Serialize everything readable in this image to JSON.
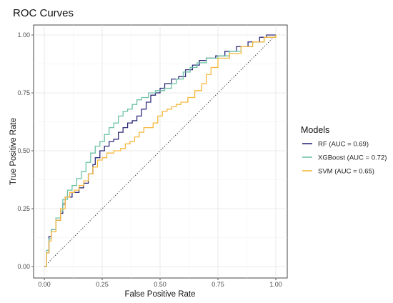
{
  "chart_data": {
    "type": "line",
    "title": "ROC Curves",
    "xlabel": "False Positive Rate",
    "ylabel": "True Positive Rate",
    "xlim": [
      0,
      1
    ],
    "ylim": [
      0,
      1
    ],
    "x_ticks": [
      "0.00",
      "0.25",
      "0.50",
      "0.75",
      "1.00"
    ],
    "y_ticks": [
      "0.00",
      "0.25",
      "0.50",
      "0.75",
      "1.00"
    ],
    "grid": true,
    "reference_line": "diagonal dotted",
    "legend": {
      "title": "Models",
      "position": "right"
    },
    "series": [
      {
        "name": "RF (AUC = 0.69)",
        "color": "#2e2b7a",
        "points": [
          [
            0,
            0
          ],
          [
            0.01,
            0.06
          ],
          [
            0.02,
            0.13
          ],
          [
            0.03,
            0.16
          ],
          [
            0.05,
            0.2
          ],
          [
            0.07,
            0.23
          ],
          [
            0.08,
            0.27
          ],
          [
            0.09,
            0.3
          ],
          [
            0.12,
            0.32
          ],
          [
            0.15,
            0.34
          ],
          [
            0.17,
            0.36
          ],
          [
            0.19,
            0.4
          ],
          [
            0.21,
            0.44
          ],
          [
            0.22,
            0.47
          ],
          [
            0.24,
            0.5
          ],
          [
            0.26,
            0.52
          ],
          [
            0.28,
            0.54
          ],
          [
            0.3,
            0.55
          ],
          [
            0.32,
            0.58
          ],
          [
            0.34,
            0.6
          ],
          [
            0.36,
            0.62
          ],
          [
            0.38,
            0.63
          ],
          [
            0.4,
            0.65
          ],
          [
            0.42,
            0.68
          ],
          [
            0.44,
            0.71
          ],
          [
            0.46,
            0.74
          ],
          [
            0.48,
            0.75
          ],
          [
            0.5,
            0.77
          ],
          [
            0.52,
            0.79
          ],
          [
            0.55,
            0.81
          ],
          [
            0.58,
            0.82
          ],
          [
            0.61,
            0.85
          ],
          [
            0.64,
            0.87
          ],
          [
            0.67,
            0.89
          ],
          [
            0.7,
            0.9
          ],
          [
            0.74,
            0.91
          ],
          [
            0.78,
            0.93
          ],
          [
            0.83,
            0.95
          ],
          [
            0.88,
            0.97
          ],
          [
            0.93,
            0.99
          ],
          [
            0.96,
            1.0
          ],
          [
            1.0,
            1.0
          ]
        ]
      },
      {
        "name": "XGBoost (AUC = 0.72)",
        "color": "#6cc2a6",
        "points": [
          [
            0,
            0
          ],
          [
            0.01,
            0.07
          ],
          [
            0.02,
            0.12
          ],
          [
            0.03,
            0.16
          ],
          [
            0.05,
            0.21
          ],
          [
            0.07,
            0.24
          ],
          [
            0.08,
            0.29
          ],
          [
            0.1,
            0.33
          ],
          [
            0.12,
            0.35
          ],
          [
            0.14,
            0.38
          ],
          [
            0.16,
            0.41
          ],
          [
            0.18,
            0.45
          ],
          [
            0.2,
            0.49
          ],
          [
            0.22,
            0.52
          ],
          [
            0.24,
            0.54
          ],
          [
            0.26,
            0.57
          ],
          [
            0.28,
            0.6
          ],
          [
            0.3,
            0.62
          ],
          [
            0.32,
            0.65
          ],
          [
            0.34,
            0.67
          ],
          [
            0.36,
            0.68
          ],
          [
            0.38,
            0.7
          ],
          [
            0.4,
            0.72
          ],
          [
            0.42,
            0.73
          ],
          [
            0.45,
            0.75
          ],
          [
            0.48,
            0.76
          ],
          [
            0.5,
            0.76
          ],
          [
            0.52,
            0.77
          ],
          [
            0.55,
            0.79
          ],
          [
            0.57,
            0.81
          ],
          [
            0.6,
            0.84
          ],
          [
            0.63,
            0.86
          ],
          [
            0.66,
            0.88
          ],
          [
            0.7,
            0.9
          ],
          [
            0.75,
            0.91
          ],
          [
            0.8,
            0.93
          ],
          [
            0.85,
            0.95
          ],
          [
            0.9,
            0.97
          ],
          [
            0.95,
            0.99
          ],
          [
            1.0,
            1.0
          ]
        ]
      },
      {
        "name": "SVM (AUC = 0.65)",
        "color": "#f6b73c",
        "points": [
          [
            0,
            0
          ],
          [
            0.01,
            0.06
          ],
          [
            0.02,
            0.11
          ],
          [
            0.03,
            0.15
          ],
          [
            0.05,
            0.2
          ],
          [
            0.07,
            0.25
          ],
          [
            0.09,
            0.3
          ],
          [
            0.11,
            0.32
          ],
          [
            0.13,
            0.33
          ],
          [
            0.15,
            0.35
          ],
          [
            0.17,
            0.37
          ],
          [
            0.19,
            0.4
          ],
          [
            0.21,
            0.43
          ],
          [
            0.23,
            0.46
          ],
          [
            0.25,
            0.47
          ],
          [
            0.27,
            0.49
          ],
          [
            0.3,
            0.5
          ],
          [
            0.33,
            0.51
          ],
          [
            0.35,
            0.53
          ],
          [
            0.37,
            0.54
          ],
          [
            0.39,
            0.56
          ],
          [
            0.41,
            0.58
          ],
          [
            0.43,
            0.6
          ],
          [
            0.45,
            0.6
          ],
          [
            0.47,
            0.62
          ],
          [
            0.49,
            0.65
          ],
          [
            0.51,
            0.67
          ],
          [
            0.53,
            0.68
          ],
          [
            0.55,
            0.69
          ],
          [
            0.57,
            0.7
          ],
          [
            0.59,
            0.71
          ],
          [
            0.62,
            0.73
          ],
          [
            0.65,
            0.76
          ],
          [
            0.68,
            0.79
          ],
          [
            0.7,
            0.83
          ],
          [
            0.72,
            0.86
          ],
          [
            0.75,
            0.9
          ],
          [
            0.8,
            0.92
          ],
          [
            0.85,
            0.95
          ],
          [
            0.9,
            0.97
          ],
          [
            0.95,
            0.99
          ],
          [
            1.0,
            1.0
          ]
        ]
      }
    ]
  }
}
